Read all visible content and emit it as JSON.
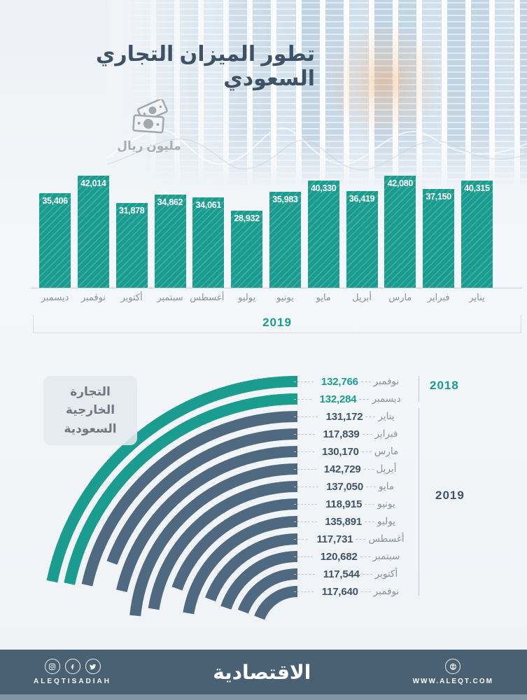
{
  "page": {
    "title": "تطور الميزان التجاري السعودي",
    "unit_label": "مليون ريال",
    "unit_icon": "banknotes-icon"
  },
  "colors": {
    "teal": "#1a9d8f",
    "slate": "#4f6980",
    "title_text": "#3d5266",
    "muted_text": "#8a929b",
    "footer_bg": "#4a6174",
    "footer_strip": "#8094a4",
    "white": "#ffffff"
  },
  "chart_data": [
    {
      "type": "bar",
      "title": "تطور الميزان التجاري السعودي",
      "ylabel": "مليون ريال",
      "year_label": "2019",
      "categories": [
        "يناير",
        "فبراير",
        "مارس",
        "أبريل",
        "مايو",
        "يونيو",
        "يوليو",
        "أغسطس",
        "سبتمبر",
        "أكتوبر",
        "نوفمبر",
        "ديسمبر"
      ],
      "values": [
        40315,
        37150,
        42080,
        36419,
        40330,
        35983,
        28932,
        34061,
        34862,
        31878,
        42014,
        35406
      ],
      "ylim": [
        0,
        44000
      ],
      "grid": false,
      "bar_color": "#1a9d8f",
      "layout": "right-to-left, value labels in white inside bar tops, months below axis"
    },
    {
      "type": "radial-bar",
      "title": "التجارة الخارجية السعودية",
      "rows": [
        {
          "month": "نوفمبر",
          "value": 132766,
          "year": "2018"
        },
        {
          "month": "ديسمبر",
          "value": 132284,
          "year": "2018"
        },
        {
          "month": "يناير",
          "value": 131172,
          "year": "2019"
        },
        {
          "month": "فبراير",
          "value": 117839,
          "year": "2019"
        },
        {
          "month": "مارس",
          "value": 130170,
          "year": "2019"
        },
        {
          "month": "أبريل",
          "value": 142729,
          "year": "2019"
        },
        {
          "month": "مايو",
          "value": 137050,
          "year": "2019"
        },
        {
          "month": "يونيو",
          "value": 118915,
          "year": "2019"
        },
        {
          "month": "يوليو",
          "value": 135891,
          "year": "2019"
        },
        {
          "month": "أغسطس",
          "value": 117731,
          "year": "2019"
        },
        {
          "month": "سبتمبر",
          "value": 120682,
          "year": "2019"
        },
        {
          "month": "أكتوبر",
          "value": 117544,
          "year": "2019"
        },
        {
          "month": "نوفمبر",
          "value": 117640,
          "year": "2019"
        }
      ],
      "year_groups": [
        {
          "label": "2018",
          "color": "#199d8f"
        },
        {
          "label": "2019",
          "color": "#3f546a"
        }
      ],
      "legend_position": "right",
      "arc_colors": {
        "2018": "#1a9d8f",
        "2019": "#4f6980"
      }
    }
  ],
  "footer": {
    "brand": "الاقتصادية",
    "social_handle": "ALEQTISADIAH",
    "website": "WWW.ALEQT.COM",
    "icons": [
      "instagram-icon",
      "facebook-icon",
      "twitter-icon",
      "globe-icon"
    ]
  }
}
